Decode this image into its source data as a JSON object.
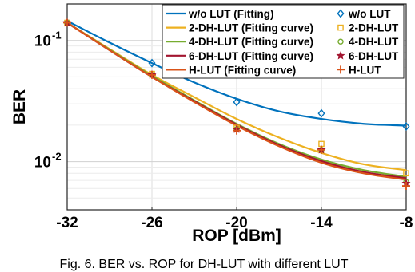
{
  "chart_data": {
    "type": "line",
    "xlabel": "ROP [dBm]",
    "ylabel": "BER",
    "x_ticks": [
      "-32",
      "-26",
      "-20",
      "-14",
      "-8"
    ],
    "xlim": [
      -32,
      -8
    ],
    "ylim": [
      0.004,
      0.2
    ],
    "y_scale": "log",
    "y_tick_labels": [
      {
        "value": 0.1,
        "base": "10",
        "exp": "-1"
      },
      {
        "value": 0.01,
        "base": "10",
        "exp": "-2"
      }
    ],
    "grid": true,
    "legend_position": "top-right",
    "caption": "Fig. 6. BER vs. ROP for DH-LUT with different LUT",
    "series": [
      {
        "name": "w/o LUT (Fitting)",
        "marker_name": "w/o LUT",
        "color": "#0072BD",
        "marker": "diamond",
        "x": [
          -32,
          -26,
          -20,
          -14,
          -8
        ],
        "values": [
          0.14,
          0.065,
          0.031,
          0.025,
          0.0195
        ],
        "fit": [
          [
            -32,
            0.145
          ],
          [
            -29,
            0.096
          ],
          [
            -26,
            0.065
          ],
          [
            -23,
            0.045
          ],
          [
            -20,
            0.033
          ],
          [
            -17,
            0.026
          ],
          [
            -14,
            0.0225
          ],
          [
            -11,
            0.0205
          ],
          [
            -9,
            0.02
          ],
          [
            -8,
            0.0198
          ]
        ]
      },
      {
        "name": "2-DH-LUT (Fitting curve)",
        "marker_name": "2-DH-LUT",
        "color": "#EDB120",
        "marker": "square",
        "x": [
          -32,
          -26,
          -20,
          -14,
          -8
        ],
        "values": [
          0.14,
          0.053,
          0.019,
          0.014,
          0.008
        ],
        "fit": [
          [
            -32,
            0.14
          ],
          [
            -29,
            0.085
          ],
          [
            -26,
            0.052
          ],
          [
            -23,
            0.034
          ],
          [
            -20,
            0.0225
          ],
          [
            -17,
            0.0158
          ],
          [
            -14,
            0.0118
          ],
          [
            -11,
            0.0095
          ],
          [
            -8,
            0.0085
          ]
        ]
      },
      {
        "name": "4-DH-LUT (Fitting curve)",
        "marker_name": "4-DH-LUT",
        "color": "#77AC30",
        "marker": "circle",
        "x": [
          -32,
          -26,
          -20,
          -14,
          -8
        ],
        "values": [
          0.14,
          0.052,
          0.0185,
          0.0125,
          0.0068
        ],
        "fit": [
          [
            -32,
            0.14
          ],
          [
            -29,
            0.084
          ],
          [
            -26,
            0.051
          ],
          [
            -23,
            0.032
          ],
          [
            -20,
            0.0205
          ],
          [
            -17,
            0.014
          ],
          [
            -14,
            0.0104
          ],
          [
            -11,
            0.0085
          ],
          [
            -8,
            0.0075
          ]
        ]
      },
      {
        "name": "6-DH-LUT (Fitting curve)",
        "marker_name": "6-DH-LUT",
        "color": "#A2142F",
        "marker": "star",
        "x": [
          -32,
          -26,
          -20,
          -14,
          -8
        ],
        "values": [
          0.14,
          0.052,
          0.0185,
          0.0125,
          0.0066
        ],
        "fit": [
          [
            -32,
            0.14
          ],
          [
            -29,
            0.083
          ],
          [
            -26,
            0.05
          ],
          [
            -23,
            0.0315
          ],
          [
            -20,
            0.0202
          ],
          [
            -17,
            0.0137
          ],
          [
            -14,
            0.0101
          ],
          [
            -11,
            0.0082
          ],
          [
            -8,
            0.0073
          ]
        ]
      },
      {
        "name": "H-LUT (Fitting curve)",
        "marker_name": "H-LUT",
        "color": "#D95319",
        "marker": "plus",
        "x": [
          -32,
          -26,
          -20,
          -14,
          -8
        ],
        "values": [
          0.14,
          0.052,
          0.018,
          0.0125,
          0.0063
        ],
        "fit": [
          [
            -32,
            0.14
          ],
          [
            -29,
            0.083
          ],
          [
            -26,
            0.05
          ],
          [
            -23,
            0.031
          ],
          [
            -20,
            0.0198
          ],
          [
            -17,
            0.0134
          ],
          [
            -14,
            0.0098
          ],
          [
            -11,
            0.008
          ],
          [
            -8,
            0.0071
          ]
        ]
      }
    ]
  }
}
